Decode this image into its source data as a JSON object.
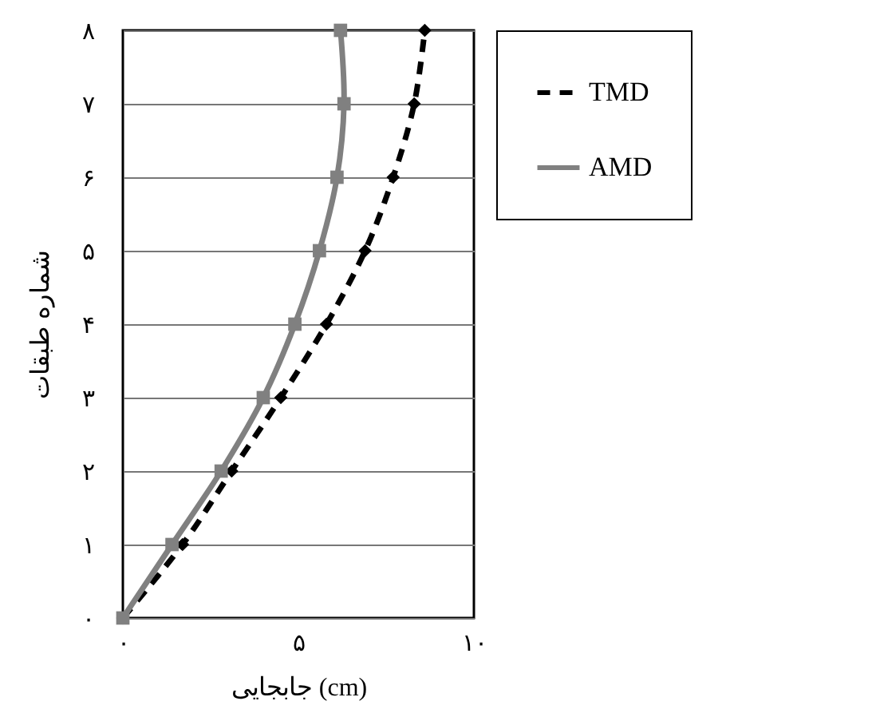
{
  "chart_data": {
    "type": "line",
    "orientation": "horizontal",
    "xlabel": "جابجایی (cm)",
    "ylabel": "شماره طبقات",
    "x": [
      0,
      1,
      2,
      3,
      4,
      5,
      6,
      7,
      8
    ],
    "series": [
      {
        "name": "TMD",
        "color": "#000000",
        "marker": "diamond",
        "line_style": "dashed",
        "values": [
          0,
          1.7,
          3.1,
          4.5,
          5.8,
          6.9,
          7.7,
          8.3,
          8.6
        ]
      },
      {
        "name": "AMD",
        "color": "#808080",
        "marker": "square",
        "line_style": "solid",
        "values": [
          0,
          1.4,
          2.8,
          4.0,
          4.9,
          5.6,
          6.1,
          6.3,
          6.2
        ]
      }
    ],
    "xlim": [
      0,
      10
    ],
    "xticks": [
      {
        "value": 0,
        "label": "۰"
      },
      {
        "value": 5,
        "label": "۵"
      },
      {
        "value": 10,
        "label": "۱۰"
      }
    ],
    "ylim": [
      0,
      8
    ],
    "yticks": [
      {
        "value": 0,
        "label": "۰"
      },
      {
        "value": 1,
        "label": "۱"
      },
      {
        "value": 2,
        "label": "۲"
      },
      {
        "value": 3,
        "label": "۳"
      },
      {
        "value": 4,
        "label": "۴"
      },
      {
        "value": 5,
        "label": "۵"
      },
      {
        "value": 6,
        "label": "۶"
      },
      {
        "value": 7,
        "label": "۷"
      },
      {
        "value": 8,
        "label": "۸"
      }
    ],
    "grid": "y",
    "legend": "right"
  }
}
